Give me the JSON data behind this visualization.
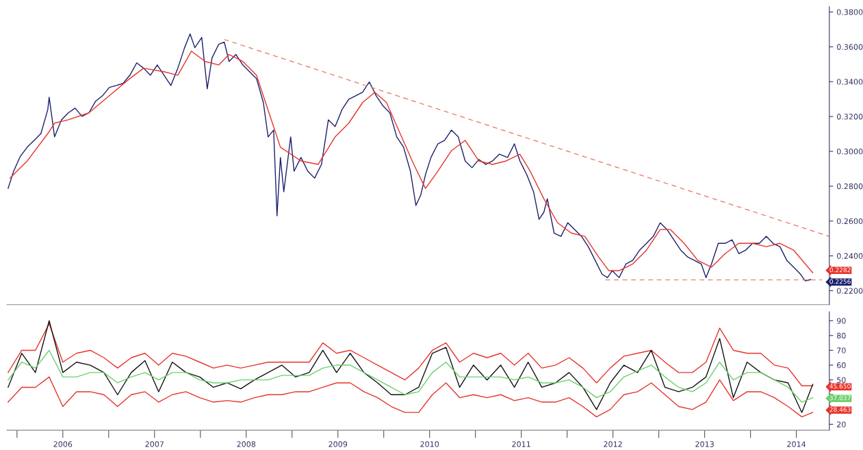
{
  "chart_data": [
    {
      "type": "line",
      "xlim": [
        2005.89,
        2014.86
      ],
      "ylim": [
        0.212,
        0.383
      ],
      "tick_labels": "y",
      "grid": false,
      "yticks": [
        {
          "value": 0.22,
          "label": "0.2200"
        },
        {
          "value": 0.24,
          "label": "0.2400"
        },
        {
          "value": 0.26,
          "label": "0.2600"
        },
        {
          "value": 0.28,
          "label": "0.2800"
        },
        {
          "value": 0.3,
          "label": "0.3000"
        },
        {
          "value": 0.32,
          "label": "0.3200"
        },
        {
          "value": 0.34,
          "label": "0.3400"
        },
        {
          "value": 0.36,
          "label": "0.3600"
        },
        {
          "value": 0.38,
          "label": "0.3800"
        }
      ],
      "annotations": [
        "0.2282",
        "0.2256"
      ],
      "series": [
        {
          "color": "#1b1f6b",
          "x": [
            2005.903,
            2005.963,
            2006.037,
            2006.112,
            2006.187,
            2006.261,
            2006.336,
            2006.351,
            2006.41,
            2006.485,
            2006.56,
            2006.634,
            2006.709,
            2006.784,
            2006.858,
            2006.933,
            2007.007,
            2007.082,
            2007.157,
            2007.231,
            2007.306,
            2007.381,
            2007.455,
            2007.53,
            2007.604,
            2007.679,
            2007.754,
            2007.828,
            2007.888,
            2007.94,
            2008.015,
            2008.075,
            2008.127,
            2008.201,
            2008.261,
            2008.313,
            2008.388,
            2008.463,
            2008.537,
            2008.612,
            2008.687,
            2008.739,
            2008.799,
            2008.836,
            2008.873,
            2008.91,
            2008.985,
            2009.022,
            2009.097,
            2009.172,
            2009.246,
            2009.321,
            2009.396,
            2009.47,
            2009.545,
            2009.619,
            2009.694,
            2009.769,
            2009.843,
            2009.918,
            2009.993,
            2010.067,
            2010.142,
            2010.216,
            2010.291,
            2010.351,
            2010.403,
            2010.455,
            2010.515,
            2010.59,
            2010.664,
            2010.739,
            2010.813,
            2010.888,
            2010.963,
            2011.037,
            2011.112,
            2011.187,
            2011.261,
            2011.351,
            2011.425,
            2011.485,
            2011.56,
            2011.634,
            2011.694,
            2011.746,
            2011.784,
            2011.858,
            2011.933,
            2012.007,
            2012.082,
            2012.157,
            2012.231,
            2012.306,
            2012.381,
            2012.44,
            2012.493,
            2012.567,
            2012.642,
            2012.716,
            2012.791,
            2012.866,
            2012.94,
            2013.015,
            2013.09,
            2013.164,
            2013.239,
            2013.313,
            2013.388,
            2013.463,
            2013.515,
            2013.575,
            2013.649,
            2013.724,
            2013.799,
            2013.873,
            2013.948,
            2014.022,
            2014.097,
            2014.172,
            2014.246,
            2014.321,
            2014.396,
            2014.47,
            2014.545,
            2014.597,
            2014.657
          ],
          "values": [
            0.2787,
            0.2886,
            0.2972,
            0.3024,
            0.3063,
            0.3102,
            0.324,
            0.3311,
            0.3083,
            0.3181,
            0.3221,
            0.3248,
            0.3201,
            0.3221,
            0.3288,
            0.3319,
            0.3367,
            0.3378,
            0.339,
            0.3437,
            0.3508,
            0.3477,
            0.3437,
            0.3496,
            0.3437,
            0.3378,
            0.3477,
            0.3595,
            0.3674,
            0.3595,
            0.3654,
            0.3359,
            0.3536,
            0.3615,
            0.3627,
            0.3516,
            0.3556,
            0.3496,
            0.3457,
            0.3418,
            0.328,
            0.3083,
            0.3122,
            0.263,
            0.2965,
            0.2768,
            0.3083,
            0.2886,
            0.2965,
            0.2886,
            0.2846,
            0.2925,
            0.3181,
            0.3142,
            0.324,
            0.3299,
            0.3319,
            0.3339,
            0.3398,
            0.3319,
            0.326,
            0.3221,
            0.3083,
            0.3024,
            0.2886,
            0.2689,
            0.2748,
            0.2866,
            0.2965,
            0.3043,
            0.3063,
            0.3122,
            0.3083,
            0.2945,
            0.2906,
            0.2953,
            0.2925,
            0.2945,
            0.2984,
            0.2965,
            0.3043,
            0.2945,
            0.2866,
            0.2768,
            0.261,
            0.265,
            0.2728,
            0.2531,
            0.2512,
            0.259,
            0.2551,
            0.2512,
            0.2453,
            0.2374,
            0.2295,
            0.2275,
            0.2315,
            0.2275,
            0.2354,
            0.2374,
            0.2433,
            0.2472,
            0.2512,
            0.259,
            0.2551,
            0.2492,
            0.2433,
            0.2394,
            0.2374,
            0.2354,
            0.2275,
            0.2354,
            0.2472,
            0.2472,
            0.2492,
            0.2413,
            0.2433,
            0.2472,
            0.2472,
            0.2512,
            0.2472,
            0.2453,
            0.2374,
            0.2335,
            0.2295,
            0.2256,
            0.2264
          ]
        },
        {
          "color": "#e8322a",
          "x": [
            2005.925,
            2006.112,
            2006.336,
            2006.41,
            2006.56,
            2006.784,
            2007.007,
            2007.231,
            2007.381,
            2007.604,
            2007.754,
            2007.903,
            2008.052,
            2008.201,
            2008.313,
            2008.463,
            2008.612,
            2008.761,
            2008.873,
            2008.985,
            2009.097,
            2009.284,
            2009.47,
            2009.619,
            2009.769,
            2009.903,
            2010.03,
            2010.179,
            2010.328,
            2010.455,
            2010.59,
            2010.739,
            2010.888,
            2011.037,
            2011.187,
            2011.336,
            2011.485,
            2011.597,
            2011.746,
            2011.896,
            2012.045,
            2012.194,
            2012.343,
            2012.455,
            2012.567,
            2012.716,
            2012.866,
            2013.015,
            2013.127,
            2013.276,
            2013.425,
            2013.575,
            2013.724,
            2013.873,
            2014.022,
            2014.172,
            2014.321,
            2014.47,
            2014.679
          ],
          "values": [
            0.2847,
            0.2945,
            0.3102,
            0.3162,
            0.3181,
            0.3221,
            0.3319,
            0.3418,
            0.3477,
            0.3457,
            0.3437,
            0.3575,
            0.3516,
            0.3496,
            0.3556,
            0.3516,
            0.3437,
            0.3201,
            0.3024,
            0.2984,
            0.2945,
            0.2925,
            0.3083,
            0.3162,
            0.328,
            0.3339,
            0.328,
            0.3102,
            0.2925,
            0.2787,
            0.2886,
            0.3004,
            0.3063,
            0.2945,
            0.2925,
            0.2945,
            0.2984,
            0.2886,
            0.2728,
            0.259,
            0.2531,
            0.2512,
            0.2394,
            0.2315,
            0.2315,
            0.2354,
            0.2433,
            0.2551,
            0.2551,
            0.2472,
            0.2374,
            0.2335,
            0.2413,
            0.2472,
            0.2472,
            0.2453,
            0.2472,
            0.2433,
            0.2303
          ]
        },
        {
          "color": "#e8806f",
          "line_style": "dashed",
          "x": [
            2008.261,
            2014.858
          ],
          "values": [
            0.3642,
            0.2512
          ]
        },
        {
          "color": "#e8806f",
          "line_style": "dashed",
          "x": [
            2012.418,
            2014.78
          ],
          "values": [
            0.2262,
            0.2262
          ]
        }
      ]
    },
    {
      "type": "line",
      "xlim": [
        2005.89,
        2014.86
      ],
      "ylim": [
        16,
        96
      ],
      "grid": false,
      "yticks": [
        20,
        {
          "value": 30,
          "label": null
        },
        {
          "value": 40,
          "label": null
        },
        50,
        60,
        70,
        80,
        90
      ],
      "xticks": [
        {
          "value": 2006,
          "label": null
        },
        {
          "value": 2006.5,
          "label": "2006"
        },
        {
          "value": 2007,
          "label": null
        },
        {
          "value": 2007.5,
          "label": "2007"
        },
        {
          "value": 2008,
          "label": null
        },
        {
          "value": 2008.5,
          "label": "2008"
        },
        {
          "value": 2009,
          "label": null
        },
        {
          "value": 2009.5,
          "label": "2009"
        },
        {
          "value": 2010,
          "label": null
        },
        {
          "value": 2010.5,
          "label": "2010"
        },
        {
          "value": 2011,
          "label": null
        },
        {
          "value": 2011.5,
          "label": "2011"
        },
        {
          "value": 2012,
          "label": null
        },
        {
          "value": 2012.5,
          "label": "2012"
        },
        {
          "value": 2013,
          "label": null
        },
        {
          "value": 2013.5,
          "label": "2013"
        },
        {
          "value": 2014,
          "label": null
        },
        {
          "value": 2014.5,
          "label": "2014"
        }
      ],
      "annotations": [
        "45.650",
        "37.037",
        "28.463"
      ],
      "x": [
        2005.903,
        2006.052,
        2006.201,
        2006.351,
        2006.5,
        2006.649,
        2006.799,
        2006.948,
        2007.097,
        2007.246,
        2007.396,
        2007.545,
        2007.694,
        2007.843,
        2007.993,
        2008.142,
        2008.291,
        2008.44,
        2008.59,
        2008.739,
        2008.888,
        2009.037,
        2009.187,
        2009.336,
        2009.485,
        2009.634,
        2009.784,
        2009.933,
        2010.082,
        2010.231,
        2010.381,
        2010.53,
        2010.679,
        2010.828,
        2010.978,
        2011.127,
        2011.276,
        2011.425,
        2011.575,
        2011.724,
        2011.873,
        2012.022,
        2012.172,
        2012.321,
        2012.47,
        2012.619,
        2012.769,
        2012.918,
        2013.067,
        2013.216,
        2013.366,
        2013.515,
        2013.664,
        2013.813,
        2013.963,
        2014.112,
        2014.261,
        2014.41,
        2014.56,
        2014.679
      ],
      "series": [
        {
          "color": "#e8322a",
          "values": [
            55,
            70,
            70,
            88,
            62,
            68,
            70,
            65,
            58,
            65,
            68,
            60,
            68,
            66,
            62,
            58,
            60,
            58,
            60,
            62,
            62,
            62,
            62,
            75,
            68,
            70,
            65,
            60,
            55,
            50,
            58,
            70,
            75,
            62,
            68,
            65,
            68,
            60,
            68,
            58,
            60,
            65,
            58,
            48,
            58,
            66,
            68,
            70,
            62,
            55,
            55,
            62,
            85,
            70,
            68,
            68,
            60,
            58,
            46,
            46
          ]
        },
        {
          "color": "#e8322a",
          "values": [
            35,
            45,
            45,
            52,
            32,
            42,
            42,
            40,
            32,
            40,
            42,
            35,
            40,
            42,
            38,
            35,
            36,
            35,
            38,
            40,
            40,
            42,
            42,
            45,
            48,
            48,
            42,
            38,
            32,
            28,
            28,
            40,
            48,
            38,
            40,
            38,
            40,
            36,
            38,
            35,
            35,
            38,
            32,
            25,
            30,
            40,
            42,
            48,
            40,
            32,
            30,
            35,
            50,
            36,
            42,
            42,
            38,
            32,
            25,
            28
          ]
        },
        {
          "color": "#111111",
          "values": [
            45,
            68,
            55,
            90,
            55,
            62,
            60,
            55,
            40,
            55,
            63,
            42,
            62,
            55,
            52,
            45,
            48,
            44,
            50,
            55,
            60,
            52,
            55,
            70,
            55,
            68,
            55,
            48,
            40,
            40,
            45,
            68,
            72,
            45,
            60,
            50,
            60,
            45,
            62,
            45,
            48,
            55,
            45,
            30,
            48,
            60,
            55,
            70,
            45,
            42,
            45,
            52,
            78,
            38,
            62,
            55,
            50,
            48,
            28,
            47
          ]
        },
        {
          "color": "#6ccf6c",
          "values": [
            50,
            62,
            58,
            70,
            52,
            52,
            55,
            55,
            48,
            52,
            55,
            50,
            55,
            55,
            50,
            48,
            48,
            50,
            50,
            50,
            53,
            53,
            53,
            58,
            60,
            60,
            55,
            50,
            45,
            40,
            42,
            55,
            62,
            52,
            52,
            52,
            52,
            50,
            52,
            48,
            48,
            50,
            45,
            38,
            42,
            52,
            56,
            60,
            52,
            45,
            42,
            48,
            62,
            50,
            55,
            55,
            50,
            45,
            35,
            38
          ]
        }
      ]
    }
  ]
}
